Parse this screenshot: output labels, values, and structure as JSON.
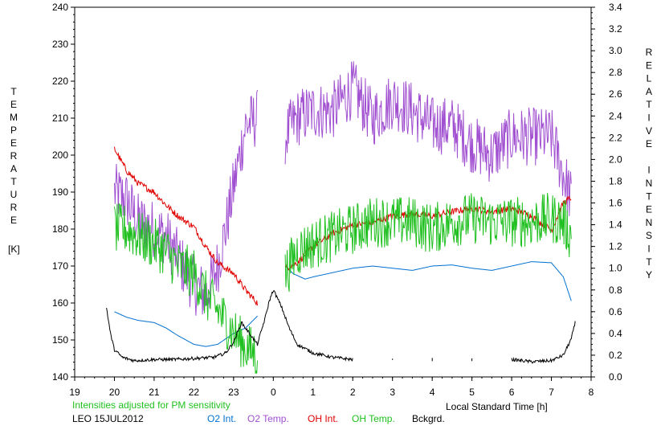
{
  "chart_data": {
    "type": "line",
    "title": "",
    "subtitle": "Intensities adjusted for PM sensitivity",
    "station_date": "LEO 15JUL2012",
    "xlabel": "Local Standard Time [h]",
    "ylabel_left_letters": [
      "T",
      "E",
      "M",
      "P",
      "E",
      "R",
      "A",
      "T",
      "U",
      "R",
      "E"
    ],
    "ylabel_left_unit": "[K]",
    "ylabel_right_letters": [
      "R",
      "E",
      "L",
      "A",
      "T",
      "I",
      "V",
      "E",
      "",
      "I",
      "N",
      "T",
      "E",
      "N",
      "S",
      "I",
      "T",
      "Y"
    ],
    "x_ticks": [
      "19",
      "20",
      "21",
      "22",
      "23",
      "0",
      "1",
      "2",
      "3",
      "4",
      "5",
      "6",
      "7",
      "8"
    ],
    "x_range": [
      19,
      32
    ],
    "ylim_left": [
      140,
      240
    ],
    "y_ticks_left": [
      "140",
      "150",
      "160",
      "170",
      "180",
      "190",
      "200",
      "210",
      "220",
      "230",
      "240"
    ],
    "ylim_right": [
      0.0,
      3.4
    ],
    "y_ticks_right": [
      "0.0",
      "0.2",
      "0.4",
      "0.6",
      "0.8",
      "1.0",
      "1.2",
      "1.4",
      "1.6",
      "1.8",
      "2.0",
      "2.2",
      "2.4",
      "2.6",
      "2.8",
      "3.0",
      "3.2",
      "3.4"
    ],
    "grid": false,
    "legend_placement": "bottom",
    "series": [
      {
        "name": "O2 Int.",
        "color": "#0070d0",
        "axis": "right",
        "x": [
          20.0,
          20.3,
          20.6,
          21.0,
          21.3,
          21.6,
          22.0,
          22.3,
          22.6,
          23.0,
          23.3,
          23.6,
          24.3,
          24.5,
          24.8,
          25.0,
          25.5,
          26.0,
          26.5,
          27.0,
          27.5,
          28.0,
          28.5,
          29.0,
          29.5,
          30.0,
          30.5,
          31.0,
          31.3,
          31.5
        ],
        "y": [
          0.6,
          0.55,
          0.52,
          0.5,
          0.45,
          0.38,
          0.3,
          0.28,
          0.3,
          0.4,
          0.45,
          0.56,
          1.02,
          0.95,
          0.9,
          0.92,
          0.96,
          1.0,
          1.02,
          1.0,
          0.98,
          1.02,
          1.03,
          1.0,
          0.98,
          1.02,
          1.06,
          1.05,
          0.92,
          0.7
        ]
      },
      {
        "name": "O2 Temp.",
        "color": "#a050d0",
        "axis": "left",
        "x": [
          20.0,
          20.3,
          20.6,
          21.0,
          21.3,
          21.6,
          22.0,
          22.3,
          22.6,
          22.8,
          23.3,
          23.6,
          24.3,
          24.6,
          25.0,
          25.5,
          26.0,
          26.5,
          27.0,
          27.5,
          28.0,
          28.5,
          29.0,
          29.5,
          30.0,
          30.5,
          31.0,
          31.3,
          31.5
        ],
        "y": [
          190,
          188,
          182,
          180,
          178,
          172,
          165,
          162,
          170,
          180,
          208,
          210,
          205,
          210,
          212,
          212,
          218,
          210,
          215,
          212,
          208,
          208,
          203,
          200,
          205,
          205,
          205,
          195,
          188
        ],
        "noise": 8
      },
      {
        "name": "OH Int.",
        "color": "#e00000",
        "axis": "right",
        "x": [
          20.0,
          20.3,
          20.6,
          21.0,
          21.3,
          21.6,
          22.0,
          22.3,
          22.6,
          23.0,
          23.3,
          23.6,
          24.3,
          24.6,
          25.0,
          25.5,
          26.0,
          26.5,
          27.0,
          27.5,
          28.0,
          28.5,
          29.0,
          29.5,
          30.0,
          30.5,
          31.0,
          31.3,
          31.5
        ],
        "y": [
          2.1,
          1.9,
          1.78,
          1.7,
          1.58,
          1.48,
          1.38,
          1.2,
          1.05,
          0.95,
          0.8,
          0.68,
          1.0,
          1.05,
          1.2,
          1.32,
          1.4,
          1.42,
          1.48,
          1.5,
          1.48,
          1.52,
          1.55,
          1.52,
          1.55,
          1.48,
          1.35,
          1.6,
          1.65
        ],
        "noise": 0.03
      },
      {
        "name": "OH Temp.",
        "color": "#20c020",
        "axis": "left",
        "x": [
          20.0,
          20.3,
          20.6,
          21.0,
          21.3,
          21.6,
          22.0,
          22.3,
          22.6,
          23.0,
          23.3,
          23.6,
          24.3,
          24.6,
          25.0,
          25.5,
          26.0,
          26.5,
          27.0,
          27.5,
          28.0,
          28.5,
          29.0,
          29.5,
          30.0,
          30.5,
          31.0,
          31.3,
          31.5
        ],
        "y": [
          180,
          180,
          178,
          176,
          174,
          170,
          168,
          162,
          158,
          152,
          148,
          146,
          168,
          174,
          176,
          178,
          180,
          182,
          182,
          182,
          180,
          182,
          183,
          182,
          182,
          182,
          183,
          182,
          178
        ],
        "noise": 7
      },
      {
        "name": "Bckgrd.",
        "color": "#000000",
        "axis": "right",
        "x": [
          19.8,
          19.9,
          20.0,
          20.2,
          20.5,
          21.0,
          21.5,
          22.0,
          22.5,
          22.8,
          23.0,
          23.2,
          23.4,
          23.6,
          23.8,
          23.9,
          24.0,
          24.2,
          24.4,
          24.6,
          25.0,
          25.5,
          26.0,
          27.0,
          28.0,
          29.0,
          30.0,
          30.5,
          31.0,
          31.3,
          31.5,
          31.6
        ],
        "y": [
          0.64,
          0.4,
          0.25,
          0.18,
          0.15,
          0.16,
          0.16,
          0.17,
          0.18,
          0.22,
          0.32,
          0.5,
          0.4,
          0.3,
          0.55,
          0.7,
          0.8,
          0.65,
          0.45,
          0.3,
          0.22,
          0.18,
          0.16,
          0.16,
          0.16,
          0.16,
          0.16,
          0.14,
          0.15,
          0.2,
          0.35,
          0.5
        ],
        "noise": 0.015
      }
    ]
  }
}
